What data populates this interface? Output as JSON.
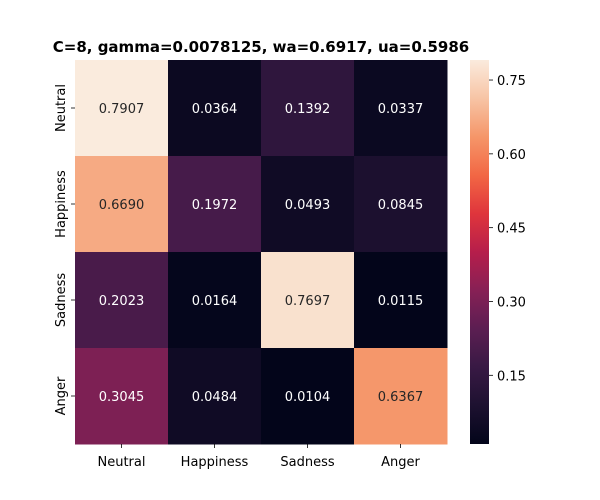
{
  "chart_data": {
    "type": "heatmap",
    "title": "C=8, gamma=0.0078125, wa=0.6917, ua=0.5986",
    "xlabel": "",
    "ylabel": "",
    "x_categories": [
      "Neutral",
      "Happiness",
      "Sadness",
      "Anger"
    ],
    "y_categories": [
      "Neutral",
      "Happiness",
      "Sadness",
      "Anger"
    ],
    "values": [
      [
        0.7907,
        0.0364,
        0.1392,
        0.0337
      ],
      [
        0.669,
        0.1972,
        0.0493,
        0.0845
      ],
      [
        0.2023,
        0.0164,
        0.7697,
        0.0115
      ],
      [
        0.3045,
        0.0484,
        0.0104,
        0.6367
      ]
    ],
    "value_labels": [
      [
        "0.7907",
        "0.0364",
        "0.1392",
        "0.0337"
      ],
      [
        "0.6690",
        "0.1972",
        "0.0493",
        "0.0845"
      ],
      [
        "0.2023",
        "0.0164",
        "0.7697",
        "0.0115"
      ],
      [
        "0.3045",
        "0.0484",
        "0.0104",
        "0.6367"
      ]
    ],
    "colorbar": {
      "min": 0.0104,
      "max": 0.7907,
      "ticks": [
        0.15,
        0.3,
        0.45,
        0.6,
        0.75
      ],
      "tick_labels": [
        "0.15",
        "0.30",
        "0.45",
        "0.60",
        "0.75"
      ],
      "colormap": "rocket"
    },
    "grid": false,
    "legend": "colorbar-right"
  }
}
